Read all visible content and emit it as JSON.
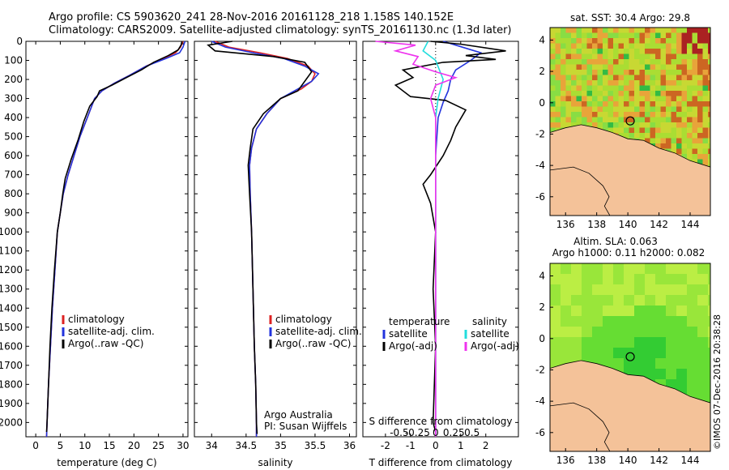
{
  "header": {
    "title_line1": "Argo profile: CS 5903620_241 28-Nov-2016 20161128_218 1.158S 140.152E",
    "title_line2": "Climatology: CARS2009. Satellite-adjusted climatology: synTS_20161130.nc (1.3d later)"
  },
  "credit": "©IMOS 07-Dec-2016 20:38:28",
  "colors": {
    "climatology": "#dd2222",
    "satellite": "#2233dd",
    "argo": "#000000",
    "salinity_satellite": "#22dddd",
    "salinity_argo": "#ee33ee",
    "land": "#f4c299"
  },
  "chart_data": [
    {
      "type": "line",
      "id": "temperature",
      "xlabel": "temperature (deg C)",
      "ylabel": "",
      "xlim": [
        -2,
        31
      ],
      "ylim": [
        2075,
        0
      ],
      "xticks": [
        0,
        5,
        10,
        15,
        20,
        25,
        30
      ],
      "yticks": [
        0,
        100,
        200,
        300,
        400,
        500,
        600,
        700,
        800,
        900,
        1000,
        1100,
        1200,
        1300,
        1400,
        1500,
        1600,
        1700,
        1800,
        1900,
        2000
      ],
      "legend": [
        "climatology",
        "satellite-adj. clim.",
        "Argo(..raw -QC)"
      ],
      "series": [
        {
          "name": "climatology",
          "color": "#dd2222",
          "points": [
            [
              30,
              0
            ],
            [
              29.5,
              30
            ],
            [
              28.5,
              60
            ],
            [
              26,
              90
            ],
            [
              22.5,
              130
            ],
            [
              19,
              180
            ],
            [
              16,
              220
            ],
            [
              13.5,
              260
            ],
            [
              12,
              300
            ],
            [
              10.5,
              400
            ],
            [
              9,
              500
            ],
            [
              7.8,
              600
            ],
            [
              6.6,
              700
            ],
            [
              5.6,
              800
            ],
            [
              5,
              900
            ],
            [
              4.4,
              1000
            ],
            [
              3.9,
              1200
            ],
            [
              3.4,
              1400
            ],
            [
              3,
              1600
            ],
            [
              2.6,
              1800
            ],
            [
              2.3,
              2000
            ],
            [
              2.2,
              2075
            ]
          ]
        },
        {
          "name": "satellite-adj. clim.",
          "color": "#2233dd",
          "points": [
            [
              30.4,
              0
            ],
            [
              30,
              30
            ],
            [
              29.3,
              60
            ],
            [
              26.5,
              90
            ],
            [
              22.5,
              130
            ],
            [
              19,
              180
            ],
            [
              16,
              220
            ],
            [
              13.5,
              260
            ],
            [
              12,
              300
            ],
            [
              10.5,
              400
            ],
            [
              9,
              500
            ],
            [
              7.8,
              600
            ],
            [
              6.6,
              700
            ],
            [
              5.6,
              800
            ],
            [
              5,
              900
            ],
            [
              4.4,
              1000
            ],
            [
              3.9,
              1200
            ],
            [
              3.4,
              1400
            ],
            [
              3,
              1600
            ],
            [
              2.6,
              1800
            ],
            [
              2.3,
              2000
            ],
            [
              2.2,
              2075
            ]
          ]
        },
        {
          "name": "Argo(..raw -QC)",
          "color": "#000000",
          "points": [
            [
              29.8,
              0
            ],
            [
              29.6,
              20
            ],
            [
              29,
              45
            ],
            [
              27,
              75
            ],
            [
              24,
              110
            ],
            [
              21.5,
              150
            ],
            [
              18.5,
              190
            ],
            [
              15.5,
              230
            ],
            [
              13,
              260
            ],
            [
              12.5,
              290
            ],
            [
              11,
              340
            ],
            [
              9.8,
              420
            ],
            [
              8.6,
              520
            ],
            [
              7.2,
              620
            ],
            [
              6,
              720
            ],
            [
              5.5,
              800
            ],
            [
              5,
              900
            ],
            [
              4.4,
              1000
            ],
            [
              3.8,
              1200
            ],
            [
              3.3,
              1400
            ],
            [
              2.9,
              1600
            ],
            [
              2.6,
              1800
            ],
            [
              2.3,
              2000
            ],
            [
              2.2,
              2050
            ]
          ]
        }
      ]
    },
    {
      "type": "line",
      "id": "salinity",
      "xlabel": "salinity",
      "ylabel": "",
      "xlim": [
        33.75,
        36.1
      ],
      "ylim": [
        2075,
        0
      ],
      "xticks": [
        34,
        34.5,
        35,
        35.5,
        36
      ],
      "legend": [
        "climatology",
        "satellite-adj. clim.",
        "Argo(..raw -QC)"
      ],
      "annotation": [
        "Argo Australia",
        "PI: Susan Wijffels"
      ],
      "series": [
        {
          "name": "climatology",
          "color": "#dd2222",
          "points": [
            [
              34.05,
              0
            ],
            [
              34.25,
              30
            ],
            [
              34.7,
              60
            ],
            [
              35.1,
              90
            ],
            [
              35.4,
              130
            ],
            [
              35.5,
              170
            ],
            [
              35.45,
              210
            ],
            [
              35.3,
              250
            ],
            [
              35.0,
              300
            ],
            [
              34.8,
              380
            ],
            [
              34.65,
              460
            ],
            [
              34.58,
              560
            ],
            [
              34.55,
              650
            ],
            [
              34.56,
              800
            ],
            [
              34.58,
              1000
            ],
            [
              34.6,
              1300
            ],
            [
              34.62,
              1600
            ],
            [
              34.64,
              1800
            ],
            [
              34.65,
              2000
            ],
            [
              34.65,
              2075
            ]
          ]
        },
        {
          "name": "satellite-adj. clim.",
          "color": "#2233dd",
          "points": [
            [
              34.0,
              0
            ],
            [
              34.2,
              30
            ],
            [
              34.6,
              60
            ],
            [
              35.05,
              90
            ],
            [
              35.35,
              130
            ],
            [
              35.55,
              170
            ],
            [
              35.45,
              210
            ],
            [
              35.25,
              250
            ],
            [
              35.0,
              300
            ],
            [
              34.8,
              380
            ],
            [
              34.65,
              460
            ],
            [
              34.58,
              560
            ],
            [
              34.55,
              650
            ],
            [
              34.56,
              800
            ],
            [
              34.58,
              1000
            ],
            [
              34.6,
              1300
            ],
            [
              34.62,
              1600
            ],
            [
              34.64,
              1800
            ],
            [
              34.65,
              2000
            ],
            [
              34.65,
              2075
            ]
          ]
        },
        {
          "name": "Argo(..raw -QC)",
          "color": "#000000",
          "points": [
            [
              34.3,
              0
            ],
            [
              33.95,
              20
            ],
            [
              34.05,
              50
            ],
            [
              34.9,
              80
            ],
            [
              35.35,
              110
            ],
            [
              35.45,
              160
            ],
            [
              35.35,
              210
            ],
            [
              35.25,
              260
            ],
            [
              35.0,
              300
            ],
            [
              34.75,
              380
            ],
            [
              34.6,
              460
            ],
            [
              34.56,
              560
            ],
            [
              34.53,
              650
            ],
            [
              34.55,
              800
            ],
            [
              34.58,
              1000
            ],
            [
              34.6,
              1300
            ],
            [
              34.62,
              1600
            ],
            [
              34.64,
              1800
            ],
            [
              34.65,
              2000
            ],
            [
              34.66,
              2060
            ]
          ]
        }
      ]
    },
    {
      "type": "line",
      "id": "difference",
      "xlabel": "T difference from climatology",
      "xlabel_top": "S difference from climatology",
      "ylabel": "",
      "xlim": [
        -2.9,
        3.3
      ],
      "ylim": [
        2075,
        0
      ],
      "xticks": [
        -2,
        -1,
        0,
        1,
        2
      ],
      "xticks_top_labels": [
        "-0.5",
        "-0.25",
        "0",
        "0.25",
        "0.5"
      ],
      "xticks_top_positions": [
        -1.45,
        -0.725,
        0,
        0.725,
        1.45
      ],
      "legend_temperature_title": "temperature",
      "legend_temperature": [
        "satellite",
        "Argo(-adj)"
      ],
      "legend_salinity_title": "salinity",
      "legend_salinity": [
        "satellite",
        "Argo(-adj)"
      ],
      "series": [
        {
          "name": "temperature satellite",
          "color": "#2233dd",
          "points": [
            [
              0.3,
              0
            ],
            [
              0.8,
              20
            ],
            [
              1.8,
              60
            ],
            [
              1.4,
              100
            ],
            [
              0.8,
              150
            ],
            [
              0.6,
              200
            ],
            [
              0.5,
              260
            ],
            [
              0.3,
              320
            ],
            [
              0.1,
              400
            ],
            [
              0,
              600
            ],
            [
              0,
              2075
            ]
          ]
        },
        {
          "name": "temperature Argo(-adj)",
          "color": "#000000",
          "points": [
            [
              -0.2,
              0
            ],
            [
              1,
              15
            ],
            [
              2.8,
              50
            ],
            [
              1.2,
              75
            ],
            [
              2.4,
              95
            ],
            [
              0.3,
              110
            ],
            [
              -1.3,
              150
            ],
            [
              -0.9,
              190
            ],
            [
              -1.6,
              230
            ],
            [
              -1.0,
              290
            ],
            [
              0.4,
              310
            ],
            [
              1.2,
              360
            ],
            [
              0.8,
              450
            ],
            [
              0.6,
              520
            ],
            [
              0.3,
              600
            ],
            [
              -0.2,
              700
            ],
            [
              -0.5,
              750
            ],
            [
              -0.2,
              850
            ],
            [
              0,
              1000
            ],
            [
              -0.1,
              1300
            ],
            [
              0,
              1600
            ],
            [
              -0.1,
              2000
            ],
            [
              0,
              2050
            ]
          ]
        },
        {
          "name": "salinity satellite",
          "color": "#22dddd",
          "points": [
            [
              -0.3,
              0
            ],
            [
              -0.5,
              50
            ],
            [
              0,
              100
            ],
            [
              0.3,
              200
            ],
            [
              0.1,
              300
            ],
            [
              0,
              400
            ],
            [
              0,
              2075
            ]
          ]
        },
        {
          "name": "salinity Argo(-adj)",
          "color": "#ee33ee",
          "points": [
            [
              -2.4,
              0
            ],
            [
              -0.8,
              20
            ],
            [
              -1.6,
              50
            ],
            [
              -0.7,
              80
            ],
            [
              -0.9,
              120
            ],
            [
              0,
              160
            ],
            [
              0.8,
              190
            ],
            [
              0,
              230
            ],
            [
              -0.2,
              300
            ],
            [
              0,
              400
            ],
            [
              0,
              2075
            ]
          ]
        }
      ]
    },
    {
      "type": "heatmap",
      "id": "sst_map",
      "title": "sat. SST: 30.4  Argo: 29.8",
      "xticks": [
        136,
        138,
        140,
        142,
        144
      ],
      "yticks": [
        4,
        2,
        0,
        -2,
        -4,
        -6
      ],
      "xlim": [
        135,
        145.3
      ],
      "ylim": [
        -7.2,
        4.8
      ],
      "argo_position": [
        140.152,
        -1.158
      ]
    },
    {
      "type": "heatmap",
      "id": "sla_map",
      "title_line1": "Altim. SLA: 0.063",
      "title_line2": "Argo h1000: 0.11 h2000: 0.082",
      "xticks": [
        136,
        138,
        140,
        142,
        144
      ],
      "yticks": [
        4,
        2,
        0,
        -2,
        -4,
        -6
      ],
      "xlim": [
        135,
        145.3
      ],
      "ylim": [
        -7.2,
        4.8
      ],
      "argo_position": [
        140.152,
        -1.158
      ]
    }
  ]
}
